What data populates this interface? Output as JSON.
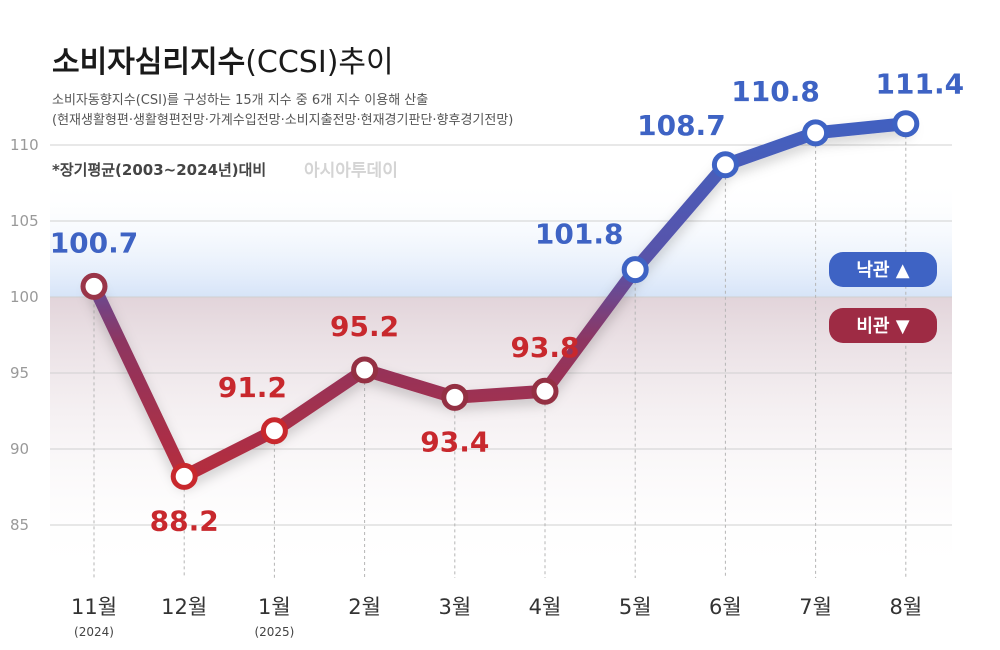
{
  "header": {
    "title_bold": "소비자심리지수",
    "title_rest": "(CCSI)추이",
    "subtitle_line1": "소비자동향지수(CSI)를 구성하는 15개 지수 중 6개 지수 이용해 산출",
    "subtitle_line2": "(현재생활형편·생활형편전망·가계수입전망·소비지출전망·현재경기판단·향후경기전망)",
    "note": "*장기평균(2003~2024년)대비",
    "watermark": "아시아투데이"
  },
  "legend": {
    "optimism": "낙관 ▲",
    "pessimism": "비관 ▼"
  },
  "colors": {
    "blue": "#3e63c4",
    "red": "#c8282d",
    "optimism_bg": "#dbe7f8",
    "pessimism_bg": "#e3d6dc",
    "legend_blue": "#3e63c4",
    "legend_red": "#9e2b44",
    "grid": "#d0d0d0",
    "axis_text": "#999999"
  },
  "chart_data": {
    "type": "line",
    "categories": [
      "11월",
      "12월",
      "1월",
      "2월",
      "3월",
      "4월",
      "5월",
      "6월",
      "7월",
      "8월"
    ],
    "year_labels": [
      "(2024)",
      "",
      "(2025)",
      "",
      "",
      "",
      "",
      "",
      "",
      ""
    ],
    "values": [
      100.7,
      88.2,
      91.2,
      95.2,
      93.4,
      93.8,
      101.8,
      108.7,
      110.8,
      111.4
    ],
    "value_labels": [
      "100.7",
      "88.2",
      "91.2",
      "95.2",
      "93.4",
      "93.8",
      "101.8",
      "108.7",
      "110.8",
      "111.4"
    ],
    "y_ticks": [
      "110",
      "105",
      "100",
      "95",
      "90",
      "85"
    ],
    "y_tick_values": [
      110,
      105,
      100,
      95,
      90,
      85
    ],
    "baseline": 100,
    "ylim": [
      82,
      113
    ],
    "grid": true
  }
}
